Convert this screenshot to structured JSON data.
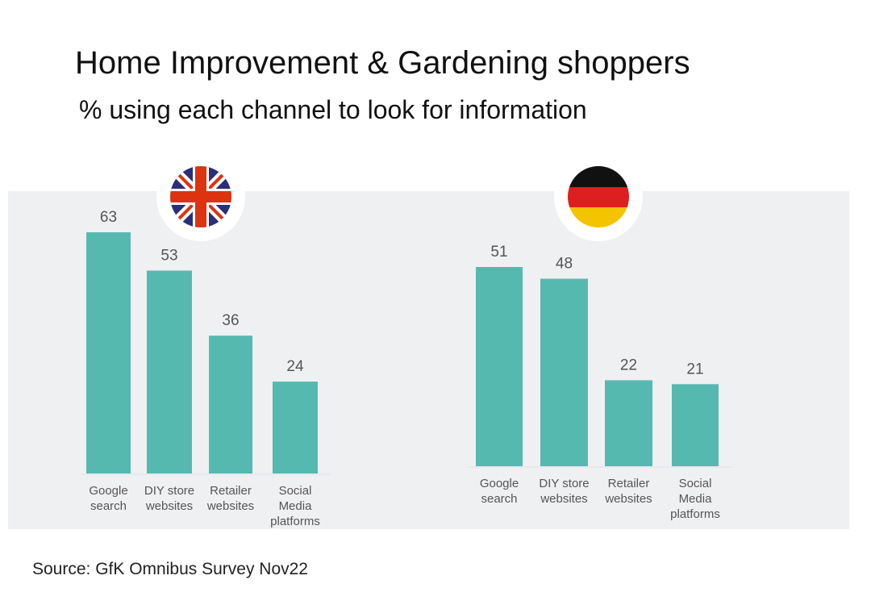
{
  "title": "Home Improvement & Gardening shoppers",
  "subtitle": "% using each channel to look for information",
  "source": "Source: GfK Omnibus Survey Nov22",
  "colors": {
    "bar": "#56b9b0",
    "panel": "#eff0f2",
    "label": "#555555"
  },
  "chart_data": [
    {
      "type": "bar",
      "name": "UK",
      "flag": "uk-flag-icon",
      "categories": [
        [
          "Google",
          "search"
        ],
        [
          "DIY store",
          "websites"
        ],
        [
          "Retailer",
          "websites"
        ],
        [
          "Social",
          "Media",
          "platforms"
        ]
      ],
      "values": [
        63,
        53,
        36,
        24
      ],
      "ylim": [
        0,
        63
      ]
    },
    {
      "type": "bar",
      "name": "Germany",
      "flag": "germany-flag-icon",
      "categories": [
        [
          "Google",
          "search"
        ],
        [
          "DIY store",
          "websites"
        ],
        [
          "Retailer",
          "websites"
        ],
        [
          "Social",
          "Media",
          "platforms"
        ]
      ],
      "values": [
        51,
        48,
        22,
        21
      ],
      "ylim": [
        0,
        51
      ]
    }
  ]
}
